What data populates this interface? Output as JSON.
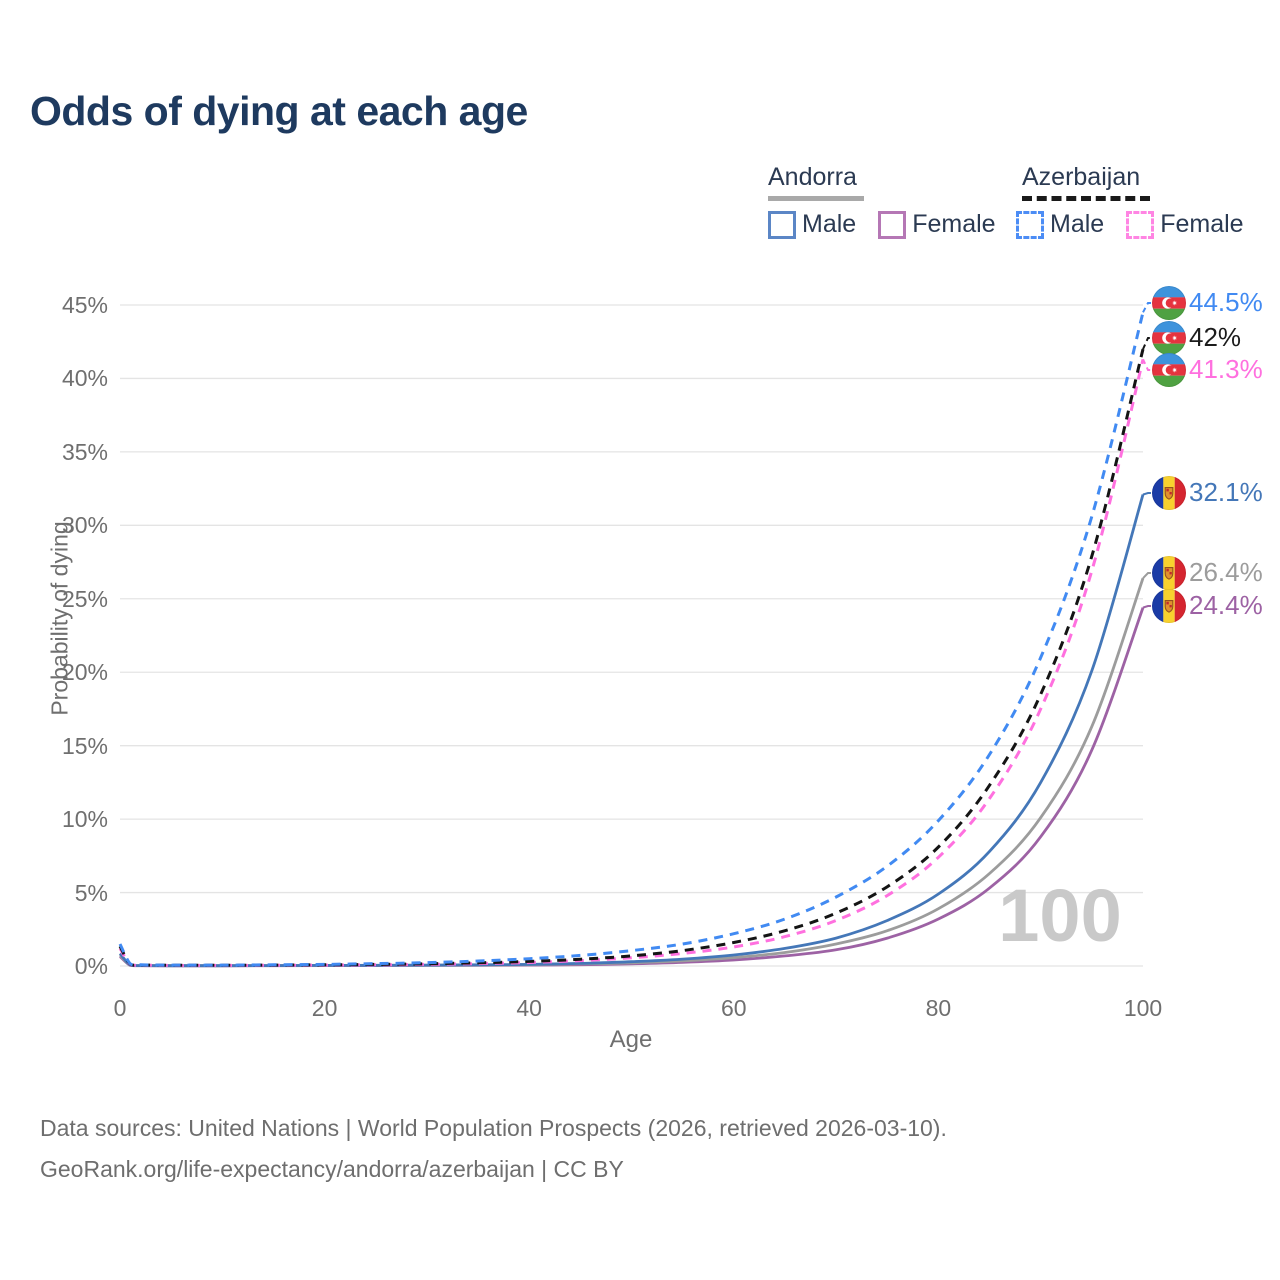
{
  "title": "Odds of dying at each age",
  "legend": {
    "groups": [
      {
        "name": "Andorra",
        "line_style": "solid",
        "swatch_color": "#a9a9a9",
        "items": [
          {
            "label": "Male",
            "color": "#5b86c6",
            "dashed": false
          },
          {
            "label": "Female",
            "color": "#b577b5",
            "dashed": false
          }
        ]
      },
      {
        "name": "Azerbaijan",
        "line_style": "dashed",
        "swatch_color": "#1a1a1a",
        "items": [
          {
            "label": "Male",
            "color": "#4c8df5",
            "dashed": true
          },
          {
            "label": "Female",
            "color": "#ff85e3",
            "dashed": true
          }
        ]
      }
    ]
  },
  "chart_data": {
    "type": "line",
    "title": "Odds of dying at each age",
    "xlabel": "Age",
    "ylabel": "Probability of dying",
    "xlim": [
      0,
      100
    ],
    "ylim": [
      0,
      45
    ],
    "grid": true,
    "legend_position": "top-right",
    "x_ticks": [
      0,
      20,
      40,
      60,
      80,
      100
    ],
    "y_tick_labels": [
      "0%",
      "5%",
      "10%",
      "15%",
      "20%",
      "25%",
      "30%",
      "35%",
      "40%",
      "45%"
    ],
    "watermark": "100",
    "x": [
      0,
      1,
      2,
      5,
      10,
      15,
      20,
      25,
      30,
      35,
      40,
      45,
      50,
      55,
      60,
      65,
      70,
      75,
      80,
      85,
      90,
      95,
      100
    ],
    "series": [
      {
        "name": "Azerbaijan Male",
        "country": "Azerbaijan",
        "sex": "Male",
        "flag": "az",
        "color": "#418af2",
        "dashed": true,
        "end_label": "44.5%",
        "end_value": 44.5,
        "values": [
          1.5,
          0.15,
          0.08,
          0.06,
          0.06,
          0.08,
          0.11,
          0.16,
          0.23,
          0.34,
          0.5,
          0.72,
          1.05,
          1.5,
          2.2,
          3.2,
          4.7,
          6.8,
          9.9,
          14.4,
          21.0,
          30.6,
          44.5
        ]
      },
      {
        "name": "Azerbaijan",
        "country": "Azerbaijan",
        "sex": "Both",
        "flag": "az",
        "color": "#141414",
        "dashed": true,
        "end_label": "42%",
        "end_value": 42,
        "values": [
          1.35,
          0.12,
          0.07,
          0.05,
          0.05,
          0.06,
          0.08,
          0.11,
          0.15,
          0.22,
          0.31,
          0.46,
          0.69,
          1.05,
          1.6,
          2.4,
          3.6,
          5.4,
          8.1,
          12.3,
          18.5,
          27.9,
          42.0
        ]
      },
      {
        "name": "Azerbaijan Female",
        "country": "Azerbaijan",
        "sex": "Female",
        "flag": "az",
        "color": "#ff70df",
        "dashed": true,
        "end_label": "41.3%",
        "end_value": 41.3,
        "values": [
          1.2,
          0.1,
          0.06,
          0.04,
          0.04,
          0.05,
          0.06,
          0.08,
          0.11,
          0.16,
          0.24,
          0.37,
          0.56,
          0.86,
          1.3,
          2.0,
          3.1,
          4.8,
          7.4,
          11.4,
          17.5,
          26.9,
          41.3
        ]
      },
      {
        "name": "Andorra Male",
        "country": "Andorra",
        "sex": "Male",
        "flag": "ad",
        "color": "#4477b8",
        "dashed": false,
        "end_label": "32.1%",
        "end_value": 32.1,
        "values": [
          0.85,
          0.06,
          0.03,
          0.02,
          0.02,
          0.03,
          0.04,
          0.05,
          0.06,
          0.08,
          0.11,
          0.18,
          0.29,
          0.47,
          0.75,
          1.2,
          1.9,
          3.1,
          4.9,
          7.8,
          12.5,
          20.1,
          32.1
        ]
      },
      {
        "name": "Andorra",
        "country": "Andorra",
        "sex": "Both",
        "flag": "ad",
        "color": "#9c9c9c",
        "dashed": false,
        "end_label": "26.4%",
        "end_value": 26.4,
        "values": [
          0.75,
          0.05,
          0.03,
          0.02,
          0.02,
          0.03,
          0.04,
          0.04,
          0.05,
          0.06,
          0.09,
          0.14,
          0.22,
          0.35,
          0.57,
          0.92,
          1.5,
          2.4,
          3.9,
          6.3,
          10.1,
          16.3,
          26.4
        ]
      },
      {
        "name": "Andorra Female",
        "country": "Andorra",
        "sex": "Female",
        "flag": "ad",
        "color": "#9d62a4",
        "dashed": false,
        "end_label": "24.4%",
        "end_value": 24.4,
        "values": [
          0.65,
          0.04,
          0.02,
          0.015,
          0.015,
          0.02,
          0.03,
          0.03,
          0.04,
          0.05,
          0.06,
          0.09,
          0.15,
          0.25,
          0.41,
          0.69,
          1.1,
          1.9,
          3.2,
          5.3,
          8.8,
          14.7,
          24.4
        ]
      }
    ]
  },
  "footer": {
    "line1": "Data sources: United Nations | World Population Prospects (2026, retrieved 2026-03-10).",
    "line2": "GeoRank.org/life-expectancy/andorra/azerbaijan | CC BY"
  }
}
